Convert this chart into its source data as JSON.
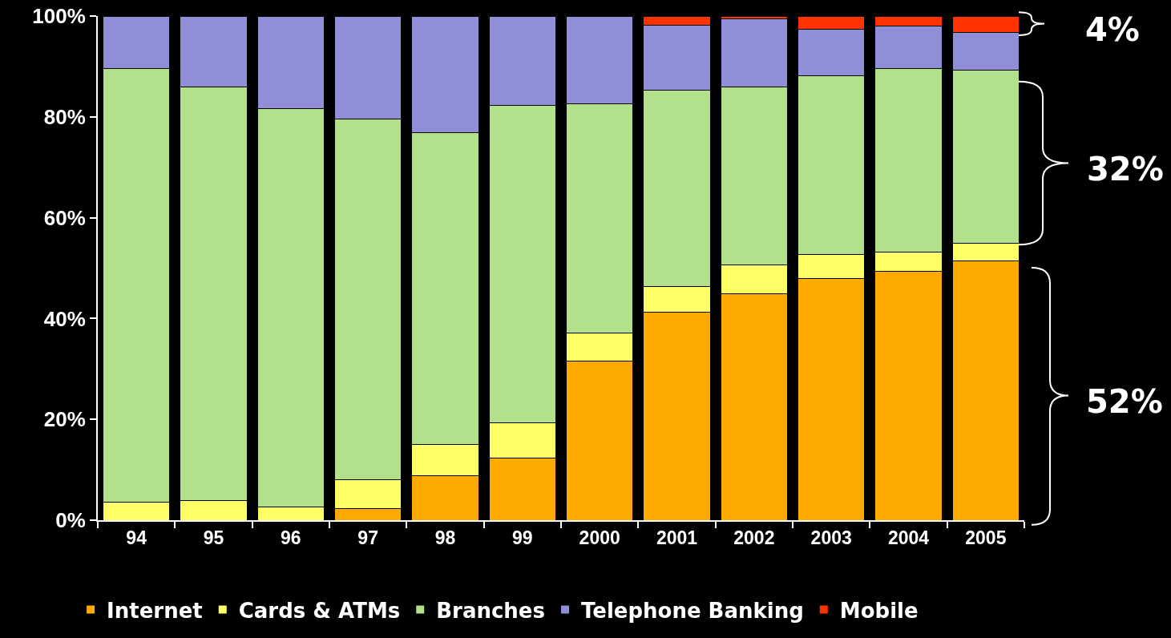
{
  "chart_data": {
    "type": "bar",
    "stacked": true,
    "categories": [
      "94",
      "95",
      "96",
      "97",
      "98",
      "99",
      "2000",
      "2001",
      "2002",
      "2003",
      "2004",
      "2005"
    ],
    "series": [
      {
        "name": "Internet",
        "color": "#ffaa00",
        "values": [
          null,
          null,
          null,
          2.3,
          8.8,
          12.3,
          31.6,
          41.2,
          44.9,
          47.9,
          49.4,
          51.5
        ]
      },
      {
        "name": "Cards & ATMs",
        "color": "#ffff66",
        "values": [
          3.5,
          3.9,
          2.7,
          5.7,
          6.3,
          7.0,
          5.5,
          5.2,
          5.7,
          4.8,
          3.8,
          3.4
        ]
      },
      {
        "name": "Branches",
        "color": "#b3e08a",
        "values": [
          86.1,
          82.1,
          79.0,
          71.6,
          61.7,
          63.0,
          45.5,
          38.9,
          35.3,
          35.4,
          36.4,
          34.4
        ]
      },
      {
        "name": "Telephone Banking",
        "color": "#8f8fd8",
        "values": [
          10.4,
          14.0,
          18.3,
          20.4,
          23.2,
          17.7,
          17.4,
          12.9,
          13.6,
          9.2,
          8.4,
          7.4
        ]
      },
      {
        "name": "Mobile",
        "color": "#ff3300",
        "values": [
          null,
          null,
          null,
          null,
          null,
          null,
          null,
          1.8,
          0.5,
          2.7,
          2.0,
          3.3
        ]
      }
    ],
    "ylim": [
      0,
      100
    ],
    "yticks": [
      {
        "value": 0,
        "label": "0%"
      },
      {
        "value": 20,
        "label": "20%"
      },
      {
        "value": 40,
        "label": "40%"
      },
      {
        "value": 60,
        "label": "60%"
      },
      {
        "value": 80,
        "label": "80%"
      },
      {
        "value": 100,
        "label": "100%"
      }
    ],
    "annotations": [
      "4%",
      "32%",
      "52%"
    ],
    "legend": "bottom"
  }
}
